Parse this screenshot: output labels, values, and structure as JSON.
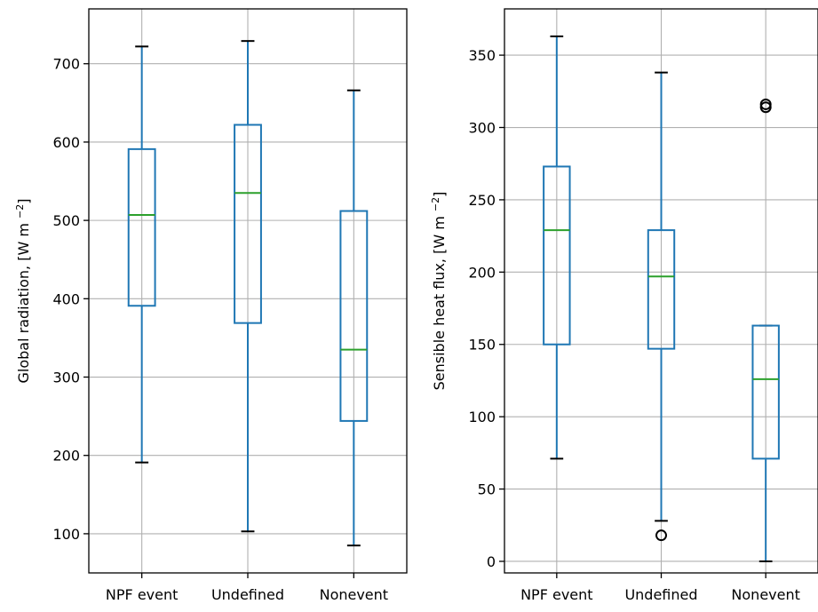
{
  "chart_data": [
    {
      "type": "boxplot",
      "ylabel": "Global radiation, [W m",
      "ylabel_sup": "−2",
      "ylabel_end": "]",
      "ylim": [
        50,
        770
      ],
      "yticks": [
        100,
        200,
        300,
        400,
        500,
        600,
        700
      ],
      "grid": true,
      "categories": [
        "NPF event",
        "Undefined",
        "Nonevent"
      ],
      "boxes": [
        {
          "whislo": 191,
          "q1": 391,
          "med": 507,
          "q3": 591,
          "whishi": 722,
          "fliers": []
        },
        {
          "whislo": 103,
          "q1": 369,
          "med": 535,
          "q3": 622,
          "whishi": 729,
          "fliers": []
        },
        {
          "whislo": 85,
          "q1": 244,
          "med": 335,
          "q3": 512,
          "whishi": 666,
          "fliers": []
        }
      ],
      "colors": {
        "box": "#1f77b4",
        "median": "#2ca02c",
        "grid": "#b0b0b0",
        "cap": "#000000"
      }
    },
    {
      "type": "boxplot",
      "ylabel": "Sensible heat flux, [W m",
      "ylabel_sup": "−2",
      "ylabel_end": "]",
      "ylim": [
        -8,
        382
      ],
      "yticks": [
        0,
        50,
        100,
        150,
        200,
        250,
        300,
        350
      ],
      "grid": true,
      "categories": [
        "NPF event",
        "Undefined",
        "Nonevent"
      ],
      "boxes": [
        {
          "whislo": 71,
          "q1": 150,
          "med": 229,
          "q3": 273,
          "whishi": 363,
          "fliers": []
        },
        {
          "whislo": 28,
          "q1": 147,
          "med": 197,
          "q3": 229,
          "whishi": 338,
          "fliers": [
            18
          ]
        },
        {
          "whislo": 0,
          "q1": 71,
          "med": 126,
          "q3": 163,
          "whishi": 163,
          "fliers": [
            314,
            316
          ]
        }
      ],
      "colors": {
        "box": "#1f77b4",
        "median": "#2ca02c",
        "grid": "#b0b0b0",
        "cap": "#000000"
      }
    }
  ]
}
